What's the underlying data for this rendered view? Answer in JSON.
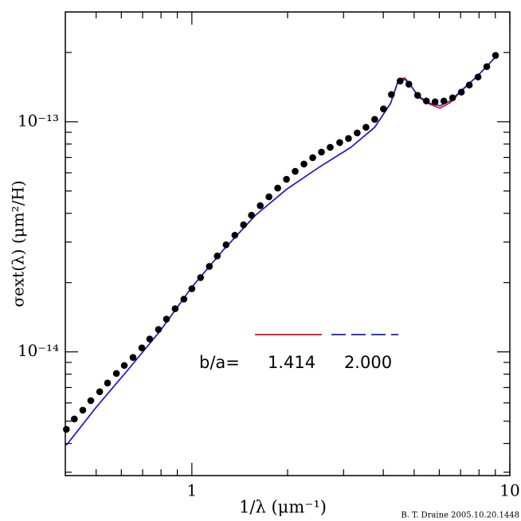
{
  "chart_data": {
    "type": "line",
    "x_label": "1/λ (μm⁻¹)",
    "y_label": "σext(λ) (μm²/H)",
    "credit": "B. T. Draine 2005.10.20.1448",
    "log_x": true,
    "log_y": true,
    "xlim": [
      0.4,
      10
    ],
    "ylim": [
      2.9e-15,
      3e-13
    ],
    "xticks": [
      1,
      10
    ],
    "yticks": [
      {
        "value": 1e-13,
        "label": "10⁻¹³"
      },
      {
        "value": 1e-14,
        "label": "10⁻¹⁴"
      }
    ],
    "legend_title": "b/a=",
    "series": [
      {
        "color": "#000000",
        "style": "markers",
        "x": [
          0.403,
          0.427,
          0.454,
          0.481,
          0.513,
          0.543,
          0.579,
          0.613,
          0.653,
          0.696,
          0.737,
          0.785,
          0.832,
          0.886,
          0.944,
          1.0,
          1.065,
          1.135,
          1.202,
          1.281,
          1.365,
          1.454,
          1.54,
          1.641,
          1.748,
          1.862,
          1.984,
          2.113,
          2.252,
          2.399,
          2.556,
          2.723,
          2.917,
          3.108,
          3.311,
          3.528,
          3.758,
          4.004,
          4.242,
          4.519,
          4.814,
          5.129,
          5.464,
          5.821,
          6.202,
          6.607,
          7.039,
          7.456,
          7.943,
          8.462,
          9.016
        ],
        "values": [
          4.605e-15,
          5.11e-15,
          5.58e-15,
          6.14e-15,
          6.71e-15,
          7.32e-15,
          8.06e-15,
          8.73e-15,
          9.46e-15,
          1.041e-14,
          1.137e-14,
          1.251e-14,
          1.388e-14,
          1.54e-14,
          1.695e-14,
          1.881e-14,
          2.103e-14,
          2.352e-14,
          2.61e-14,
          2.92e-14,
          3.213e-14,
          3.565e-14,
          3.925e-14,
          4.319e-14,
          4.717e-14,
          5.15e-14,
          5.623e-14,
          6.09e-14,
          6.55e-14,
          6.98e-14,
          7.38e-14,
          7.74e-14,
          8.12e-14,
          8.46e-14,
          8.94e-14,
          9.46e-14,
          1.024e-13,
          1.137e-13,
          1.313e-13,
          1.503e-13,
          1.456e-13,
          1.302e-13,
          1.231e-13,
          1.221e-13,
          1.231e-13,
          1.271e-13,
          1.345e-13,
          1.444e-13,
          1.565e-13,
          1.736e-13,
          1.942e-13
        ]
      },
      {
        "name": "1.414",
        "color": "#e8001c",
        "style": "line",
        "x": [
          0.403,
          0.501,
          0.631,
          0.794,
          1.0,
          1.259,
          1.585,
          1.995,
          2.512,
          3.162,
          3.758,
          4.217,
          4.467,
          4.677,
          4.87,
          5.158,
          5.623,
          6.026,
          6.494,
          7.079,
          7.943,
          9.016
        ],
        "values": [
          3.93e-15,
          5.76e-15,
          8.386e-15,
          1.231e-14,
          1.911e-14,
          2.783e-14,
          3.925e-14,
          5.11e-14,
          6.34e-14,
          7.74e-14,
          9.46e-14,
          1.202e-13,
          1.53e-13,
          1.55e-13,
          1.444e-13,
          1.28e-13,
          1.19e-13,
          1.146e-13,
          1.21e-13,
          1.37e-13,
          1.59e-13,
          1.911e-13
        ]
      },
      {
        "name": "2.000",
        "color": "#1a1adc",
        "style": "line",
        "legend_dash": true,
        "x": [
          0.403,
          0.501,
          0.631,
          0.794,
          1.0,
          1.259,
          1.585,
          1.995,
          2.512,
          3.162,
          3.758,
          4.217,
          4.467,
          4.677,
          4.87,
          5.158,
          5.623,
          6.026,
          6.494,
          7.079,
          7.943,
          9.016
        ],
        "values": [
          3.93e-15,
          5.76e-15,
          8.386e-15,
          1.231e-14,
          1.911e-14,
          2.783e-14,
          3.925e-14,
          5.11e-14,
          6.34e-14,
          7.74e-14,
          9.46e-14,
          1.202e-13,
          1.516e-13,
          1.528e-13,
          1.444e-13,
          1.292e-13,
          1.202e-13,
          1.173e-13,
          1.231e-13,
          1.377e-13,
          1.59e-13,
          1.911e-13
        ]
      }
    ]
  }
}
